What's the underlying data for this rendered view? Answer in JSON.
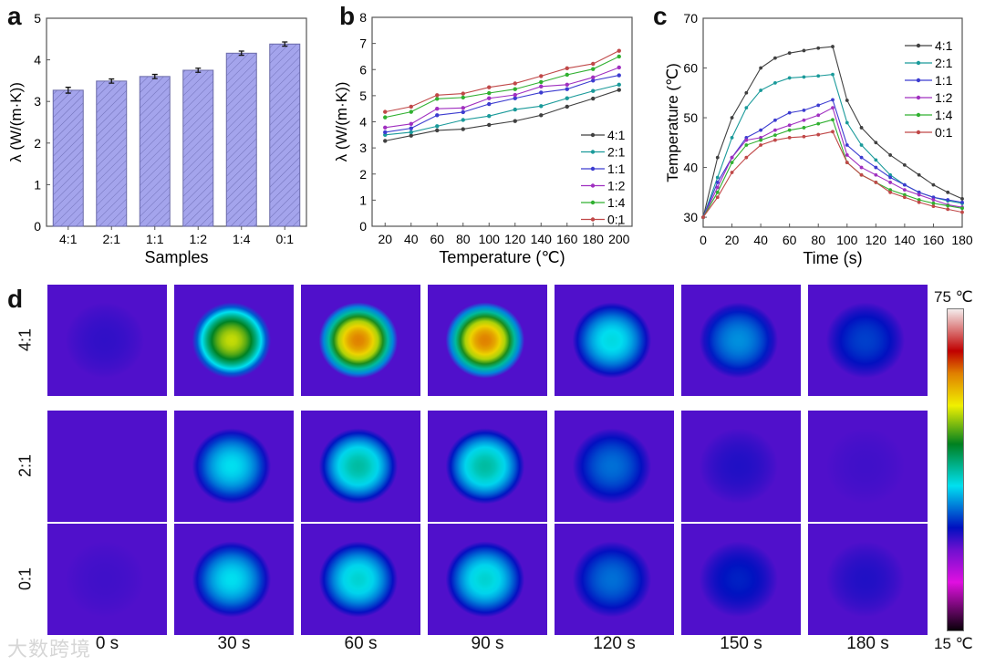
{
  "panel_letters": {
    "a": "a",
    "b": "b",
    "c": "c",
    "d": "d"
  },
  "chart_data": [
    {
      "type": "bar",
      "title": "",
      "xlabel": "Samples",
      "ylabel": "λ (W/(m·K))",
      "categories": [
        "4:1",
        "2:1",
        "1:1",
        "1:2",
        "1:4",
        "0:1"
      ],
      "values": [
        3.27,
        3.49,
        3.6,
        3.75,
        4.16,
        4.38
      ],
      "errors": [
        0.07,
        0.05,
        0.05,
        0.05,
        0.05,
        0.05
      ],
      "ylim": [
        0,
        5
      ],
      "yticks": [
        0,
        1,
        2,
        3,
        4,
        5
      ],
      "color": "#a0a0e8"
    },
    {
      "type": "line",
      "xlabel": "Temperature (℃)",
      "ylabel": "λ (W/(m·K))",
      "x": [
        20,
        40,
        60,
        80,
        100,
        120,
        140,
        160,
        180,
        200
      ],
      "xlim": [
        10,
        210
      ],
      "ylim": [
        0,
        8
      ],
      "yticks": [
        0,
        1,
        2,
        3,
        4,
        5,
        6,
        7,
        8
      ],
      "xticks": [
        20,
        40,
        60,
        80,
        100,
        120,
        140,
        160,
        180,
        200
      ],
      "legend": "bottom-right",
      "series": [
        {
          "name": "4:1",
          "color": "#404040",
          "values": [
            3.27,
            3.47,
            3.67,
            3.72,
            3.88,
            4.03,
            4.25,
            4.58,
            4.89,
            5.22
          ]
        },
        {
          "name": "2:1",
          "color": "#1a9a9a",
          "values": [
            3.5,
            3.6,
            3.83,
            4.07,
            4.22,
            4.47,
            4.6,
            4.9,
            5.18,
            5.42
          ]
        },
        {
          "name": "1:1",
          "color": "#3c3cd0",
          "values": [
            3.6,
            3.75,
            4.25,
            4.37,
            4.68,
            4.9,
            5.12,
            5.25,
            5.58,
            5.78
          ]
        },
        {
          "name": "1:2",
          "color": "#a030c0",
          "values": [
            3.78,
            3.92,
            4.5,
            4.53,
            4.9,
            5.03,
            5.35,
            5.42,
            5.7,
            6.08
          ]
        },
        {
          "name": "1:4",
          "color": "#30b030",
          "values": [
            4.17,
            4.38,
            4.88,
            4.93,
            5.1,
            5.25,
            5.52,
            5.8,
            6.02,
            6.5
          ]
        },
        {
          "name": "0:1",
          "color": "#c04848",
          "values": [
            4.38,
            4.58,
            5.02,
            5.08,
            5.32,
            5.47,
            5.75,
            6.05,
            6.22,
            6.72
          ]
        }
      ]
    },
    {
      "type": "line",
      "xlabel": "Time (s)",
      "ylabel": "Temperature (℃)",
      "x": [
        0,
        10,
        20,
        30,
        40,
        50,
        60,
        70,
        80,
        90,
        100,
        110,
        120,
        130,
        140,
        150,
        160,
        170,
        180
      ],
      "xlim": [
        0,
        180
      ],
      "ylim": [
        28,
        70
      ],
      "yticks": [
        30,
        40,
        50,
        60,
        70
      ],
      "xticks": [
        0,
        20,
        40,
        60,
        80,
        100,
        120,
        140,
        160,
        180
      ],
      "legend": "top-right",
      "series": [
        {
          "name": "4:1",
          "color": "#404040",
          "values": [
            30,
            42,
            50,
            55,
            60,
            62,
            63,
            63.5,
            64,
            64.3,
            53.5,
            48,
            45,
            42.5,
            40.5,
            38.5,
            36.5,
            35,
            33.7
          ]
        },
        {
          "name": "2:1",
          "color": "#1a9a9a",
          "values": [
            30,
            38,
            46,
            52,
            55.5,
            57,
            58,
            58.2,
            58.4,
            58.7,
            49,
            44.5,
            41.5,
            38.5,
            36.5,
            35,
            34,
            33.3,
            32.8
          ]
        },
        {
          "name": "1:1",
          "color": "#3c3cd0",
          "values": [
            30,
            37,
            42,
            46,
            47.5,
            49.5,
            51,
            51.5,
            52.5,
            53.6,
            44.5,
            42,
            40,
            38,
            36.5,
            35,
            34,
            33.5,
            33
          ]
        },
        {
          "name": "1:2",
          "color": "#a030c0",
          "values": [
            30,
            36,
            42,
            45.5,
            46,
            47.5,
            48.5,
            49.5,
            50.5,
            52,
            42.5,
            40,
            38.5,
            37,
            35.5,
            34.5,
            33.5,
            32.5,
            32
          ]
        },
        {
          "name": "1:4",
          "color": "#30b030",
          "values": [
            30,
            35,
            41,
            44.5,
            45.5,
            46.5,
            47.5,
            48,
            48.8,
            49.6,
            41,
            38.5,
            37,
            35.5,
            34.5,
            33.5,
            32.8,
            32.3,
            31.8
          ]
        },
        {
          "name": "0:1",
          "color": "#c04848",
          "values": [
            30,
            34,
            39,
            42,
            44.5,
            45.5,
            46,
            46.2,
            46.6,
            47.2,
            41,
            38.5,
            37,
            35,
            34,
            33,
            32.2,
            31.6,
            31
          ]
        }
      ]
    },
    {
      "type": "heatmap",
      "rows": [
        "4:1",
        "2:1",
        "0:1"
      ],
      "times": [
        "0 s",
        "30 s",
        "60 s",
        "90 s",
        "120 s",
        "150 s",
        "180 s"
      ],
      "background_level": 0.27,
      "peak_levels": [
        [
          0.29,
          0.68,
          0.8,
          0.8,
          0.46,
          0.4,
          0.35
        ],
        [
          0.27,
          0.45,
          0.5,
          0.5,
          0.38,
          0.3,
          0.28
        ],
        [
          0.28,
          0.45,
          0.47,
          0.47,
          0.38,
          0.33,
          0.3
        ]
      ],
      "colorbar_max": "75 ℃",
      "colorbar_min": "15 ℃"
    }
  ],
  "watermark": "大数跨境"
}
